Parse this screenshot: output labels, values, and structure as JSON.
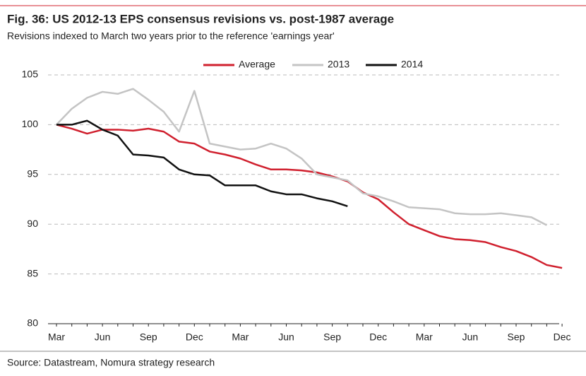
{
  "title": "Fig. 36: US 2012-13 EPS consensus revisions vs. post-1987 average",
  "subtitle": "Revisions indexed to March two years prior to the reference 'earnings year'",
  "source": "Source: Datastream, Nomura strategy research",
  "chart_data": {
    "type": "line",
    "categories": [
      "Mar",
      null,
      null,
      "Jun",
      null,
      null,
      "Sep",
      null,
      null,
      "Dec",
      null,
      null,
      "Mar",
      null,
      null,
      "Jun",
      null,
      null,
      "Sep",
      null,
      null,
      "Dec",
      null,
      null,
      "Mar",
      null,
      null,
      "Jun",
      null,
      null,
      "Sep",
      null,
      null,
      "Dec"
    ],
    "series": [
      {
        "name": "Average",
        "color": "#d0202e",
        "values": [
          100,
          99.6,
          99.1,
          99.5,
          99.5,
          99.4,
          99.6,
          99.3,
          98.3,
          98.1,
          97.3,
          97.0,
          96.6,
          96.0,
          95.5,
          95.5,
          95.4,
          95.2,
          94.8,
          94.3,
          93.2,
          92.5,
          91.2,
          90.0,
          89.4,
          88.8,
          88.5,
          88.4,
          88.2,
          87.7,
          87.3,
          86.7,
          85.9,
          85.6
        ]
      },
      {
        "name": "2013",
        "color": "#c4c4c4",
        "values": [
          100,
          101.6,
          102.7,
          103.3,
          103.1,
          103.6,
          102.5,
          101.3,
          99.3,
          103.4,
          98.1,
          97.8,
          97.5,
          97.6,
          98.1,
          97.6,
          96.6,
          95.0,
          94.7,
          94.4,
          93.1,
          92.8,
          92.3,
          91.7,
          91.6,
          91.5,
          91.1,
          91.0,
          91.0,
          91.1,
          90.9,
          90.7,
          89.9,
          null
        ]
      },
      {
        "name": "2014",
        "color": "#111111",
        "values": [
          100,
          100,
          100.4,
          99.5,
          98.9,
          97.0,
          96.9,
          96.7,
          95.5,
          95.0,
          94.9,
          93.9,
          93.9,
          93.9,
          93.3,
          93.0,
          93.0,
          92.6,
          92.3,
          91.8,
          null,
          null,
          null,
          null,
          null,
          null,
          null,
          null,
          null,
          null,
          null,
          null,
          null,
          null
        ]
      }
    ],
    "ylim": [
      80,
      105
    ],
    "yticks": [
      80,
      85,
      90,
      95,
      100,
      105
    ],
    "grid": true,
    "legend": "top"
  }
}
